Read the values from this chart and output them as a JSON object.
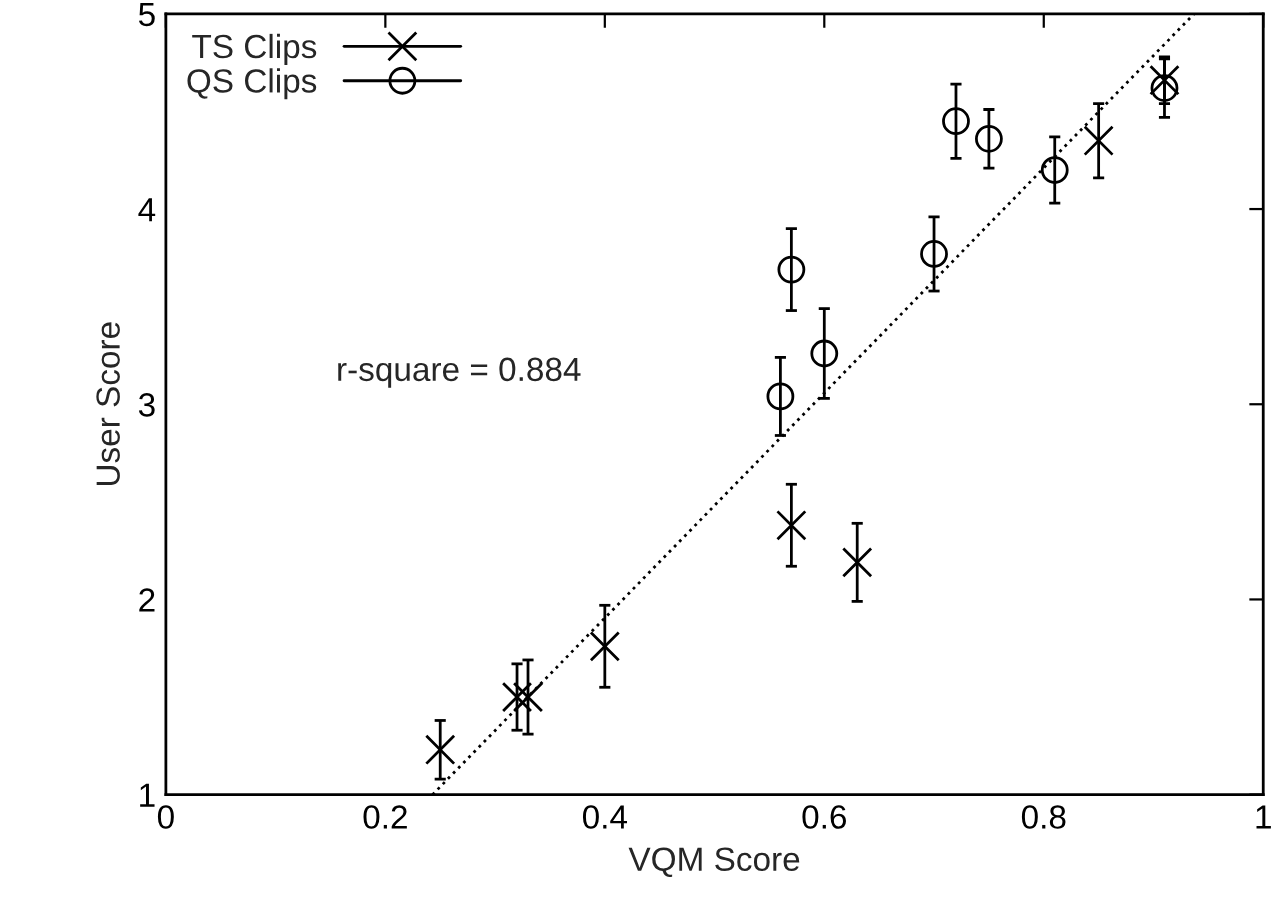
{
  "chart_data": {
    "type": "scatter",
    "xlabel": "VQM Score",
    "ylabel": "User Score",
    "xlim": [
      0,
      1
    ],
    "ylim": [
      1,
      5
    ],
    "xticks": [
      0,
      0.2,
      0.4,
      0.6,
      0.8,
      1
    ],
    "yticks": [
      1,
      2,
      3,
      4,
      5
    ],
    "legend": "top left",
    "grid": false,
    "annotations": [
      "r-square = 0.884"
    ],
    "series": [
      {
        "name": "TS Clips",
        "color": "#000000",
        "marker": "cross",
        "x": [
          0.25,
          0.32,
          0.33,
          0.4,
          0.57,
          0.63,
          0.85,
          0.91
        ],
        "values": [
          1.23,
          1.5,
          1.5,
          1.76,
          2.38,
          2.19,
          4.35,
          4.66
        ],
        "errors": [
          0.15,
          0.17,
          0.19,
          0.21,
          0.21,
          0.2,
          0.19,
          0.12
        ]
      },
      {
        "name": "QS Clips",
        "color": "#000000",
        "marker": "circle",
        "x": [
          0.56,
          0.57,
          0.6,
          0.7,
          0.72,
          0.75,
          0.81,
          0.91
        ],
        "values": [
          3.04,
          3.69,
          3.26,
          3.77,
          4.45,
          4.36,
          4.2,
          4.62
        ],
        "errors": [
          0.2,
          0.21,
          0.23,
          0.19,
          0.19,
          0.15,
          0.17,
          0.15
        ]
      },
      {
        "type": "line",
        "color": "#000000",
        "line_style": "dotted",
        "x": [
          0.243,
          0.937
        ],
        "values": [
          1,
          5
        ]
      }
    ]
  }
}
